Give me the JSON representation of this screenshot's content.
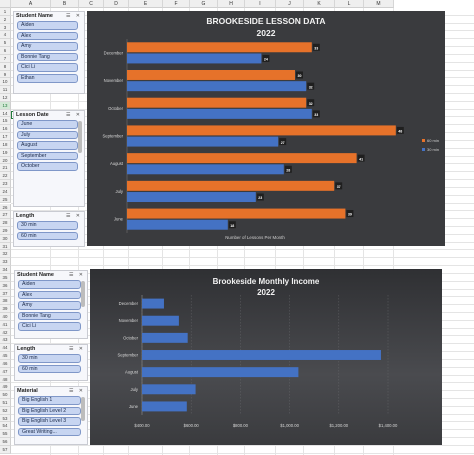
{
  "columns": [
    "A",
    "B",
    "C",
    "D",
    "E",
    "F",
    "G",
    "H",
    "I",
    "J",
    "K",
    "L",
    "M"
  ],
  "rows": [
    "1",
    "2",
    "3",
    "4",
    "5",
    "6",
    "7",
    "8",
    "9",
    "10",
    "11",
    "12",
    "13",
    "14",
    "15",
    "16",
    "17",
    "18",
    "19",
    "20",
    "21",
    "22",
    "23",
    "24",
    "25",
    "26",
    "27",
    "28",
    "29",
    "30",
    "31",
    "32",
    "33",
    "34",
    "35",
    "36",
    "37",
    "38",
    "39",
    "40",
    "41",
    "42",
    "43",
    "44",
    "45",
    "46",
    "47",
    "48",
    "49",
    "50",
    "51",
    "52",
    "53",
    "54",
    "55",
    "56",
    "57"
  ],
  "slicers": {
    "student_top": {
      "title": "Student Name",
      "items": [
        "Aiden",
        "Alex",
        "Amy",
        "Bonnie Tang",
        "Cici Li",
        "Ethan"
      ]
    },
    "lesson_date": {
      "title": "Lesson Date",
      "items": [
        "June",
        "July",
        "August",
        "September",
        "October"
      ]
    },
    "length_top": {
      "title": "Length",
      "items": [
        "30 min",
        "60 min"
      ]
    },
    "student_bottom": {
      "title": "Student Name",
      "items": [
        "Aiden",
        "Alex",
        "Amy",
        "Bonnie Tang",
        "Cici Li"
      ]
    },
    "length_bottom": {
      "title": "Length",
      "items": [
        "30 min",
        "60 min"
      ]
    },
    "material": {
      "title": "Material",
      "items": [
        "Big English 1",
        "Big English Level 2",
        "Big English Level 3",
        "Great Writing..."
      ]
    }
  },
  "colors": {
    "orange": "#e6722a",
    "blue": "#4472c4",
    "chart_bg": "#3a3b3e"
  },
  "chart_data": [
    {
      "type": "bar",
      "title": "BROOKESIDE LESSON DATA",
      "subtitle": "2022",
      "xlabel": "Number of Lessons Per Month",
      "categories": [
        "December",
        "November",
        "October",
        "September",
        "August",
        "July",
        "June"
      ],
      "series": [
        {
          "name": "60 min",
          "color": "#e6722a",
          "values": [
            33,
            30,
            32,
            48,
            41,
            37,
            39
          ]
        },
        {
          "name": "30 min",
          "color": "#4472c4",
          "values": [
            24,
            32,
            33,
            27,
            28,
            23,
            18
          ]
        }
      ],
      "legend": "right",
      "xlim": [
        0,
        50
      ]
    },
    {
      "type": "bar",
      "title": "Brookeside Monthly Income",
      "subtitle": "2022",
      "categories": [
        "December",
        "November",
        "October",
        "September",
        "August",
        "July",
        "June"
      ],
      "values": [
        125,
        210,
        260,
        1360,
        890,
        305,
        255
      ],
      "xticks": [
        "$400.00",
        "$600.00",
        "$800.00",
        "$1,000.00",
        "$1,200.00",
        "$1,400.00"
      ],
      "xlim": [
        0,
        1400
      ],
      "color": "#4472c4"
    }
  ]
}
